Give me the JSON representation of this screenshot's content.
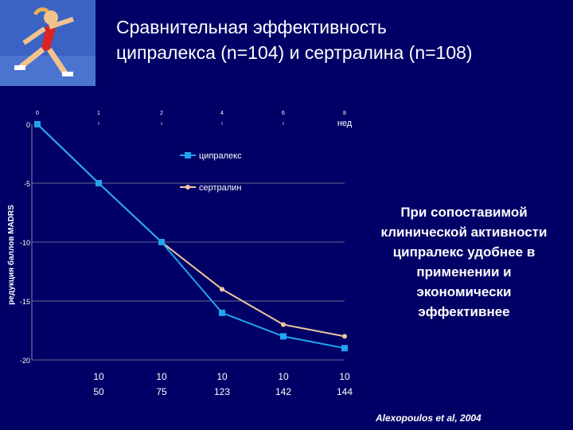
{
  "title": {
    "line1": "Сравнительная эффективность",
    "line2": "ципралекса (n=104) и сертралина (n=108)"
  },
  "photo": {
    "icon": "sprinter-photo"
  },
  "chart_data": {
    "type": "line",
    "title": "",
    "xlabel": "нед",
    "ylabel": "редукция баллов MADRS",
    "x": [
      0,
      1,
      2,
      4,
      6,
      8
    ],
    "x_tick_labels": [
      "0",
      "1",
      "2",
      "4",
      "6",
      "8"
    ],
    "ylim": [
      -20,
      0
    ],
    "y_ticks": [
      0,
      -5,
      -10,
      -15,
      -20
    ],
    "series": [
      {
        "name": "ципралекс",
        "color": "#22a4f0",
        "marker": "square",
        "values": [
          0,
          -5,
          -10,
          -16,
          -18,
          -19
        ]
      },
      {
        "name": "сертралин",
        "color": "#f0c8a0",
        "marker": "circle",
        "values": [
          0,
          -5,
          -10,
          -14,
          -17,
          -18
        ]
      }
    ],
    "legend": "top-center",
    "grid": true,
    "sample_sizes": {
      "weeks": [
        1,
        2,
        4,
        6,
        8
      ],
      "row1": [
        "10",
        "10",
        "10",
        "10",
        "10"
      ],
      "row2": [
        "50",
        "75",
        "123",
        "142",
        "144"
      ]
    }
  },
  "note": {
    "lines": [
      "При сопоставимой",
      "клинической активности",
      "ципралекс удобнее в",
      "применении и",
      "экономически",
      "эффективнее"
    ]
  },
  "citation": "Alexopoulos et al, 2004"
}
